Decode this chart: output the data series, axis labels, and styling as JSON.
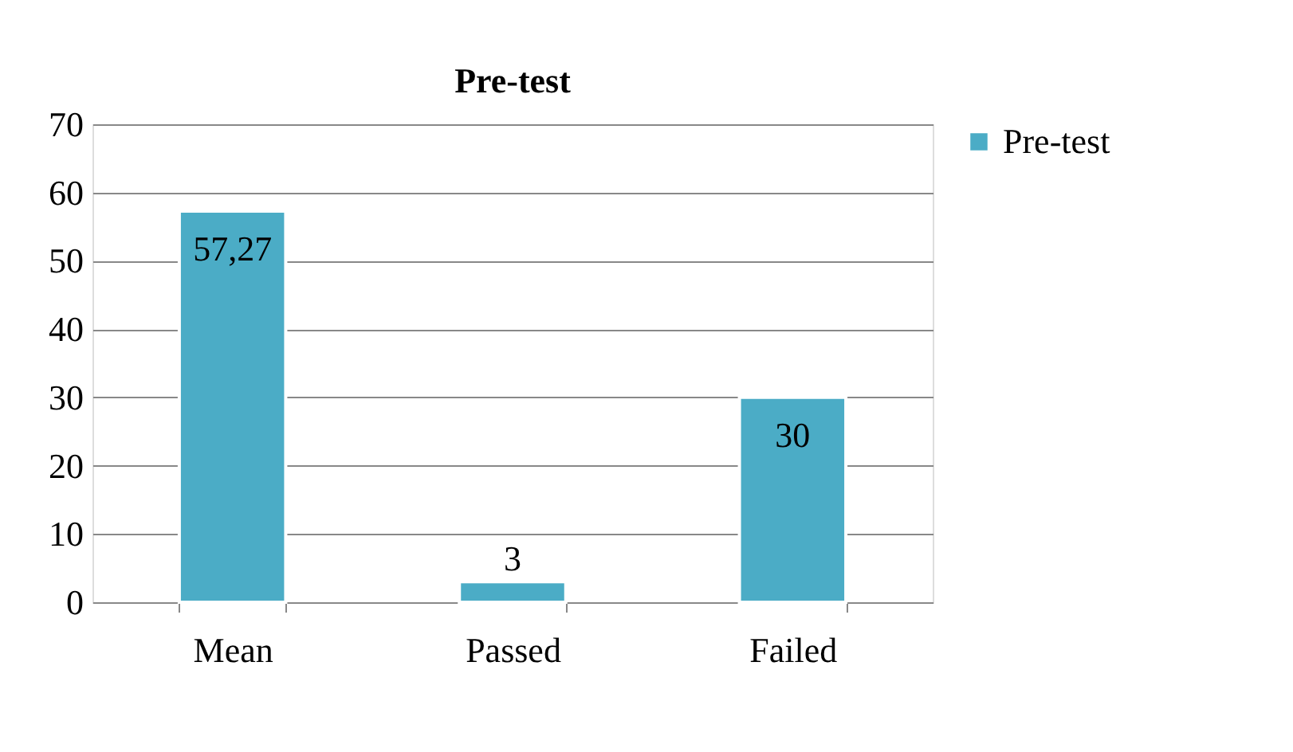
{
  "chart_data": {
    "type": "bar",
    "title": "Pre-test",
    "categories": [
      "Mean",
      "Passed",
      "Failed"
    ],
    "series": [
      {
        "name": "Pre-test",
        "color": "#4bacc6",
        "values": [
          57.27,
          3,
          30
        ],
        "value_labels": [
          "57,27",
          "3",
          "30"
        ]
      }
    ],
    "ylim": [
      0,
      70
    ],
    "yticks": [
      0,
      10,
      20,
      30,
      40,
      50,
      60,
      70
    ],
    "grid": "y",
    "legend": "right"
  }
}
